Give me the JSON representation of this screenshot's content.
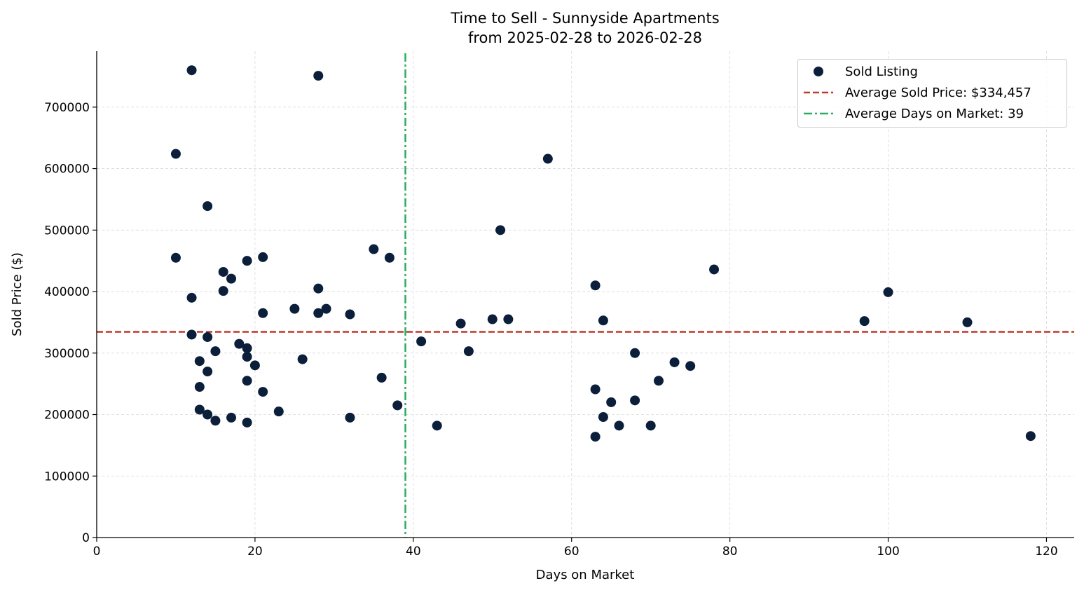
{
  "chart_data": {
    "type": "scatter",
    "title": "Time to Sell - Sunnyside Apartments",
    "subtitle": "from 2025-02-28 to 2026-02-28",
    "xlabel": "Days on Market",
    "ylabel": "Sold Price ($)",
    "xlim": [
      0,
      123.5
    ],
    "ylim": [
      0,
      791000
    ],
    "xticks": [
      0,
      20,
      40,
      60,
      80,
      100,
      120
    ],
    "yticks": [
      0,
      100000,
      200000,
      300000,
      400000,
      500000,
      600000,
      700000
    ],
    "grid": true,
    "legend_placement": "top-right",
    "colors": {
      "points": "#0b1f3a",
      "avg_price": "#c0392b",
      "avg_days": "#27ae60",
      "grid": "#d9d9d9"
    },
    "series": [
      {
        "name": "Sold Listing",
        "points": [
          [
            12,
            760000
          ],
          [
            28,
            751000
          ],
          [
            10,
            624000
          ],
          [
            57,
            616000
          ],
          [
            14,
            539000
          ],
          [
            51,
            500000
          ],
          [
            35,
            469000
          ],
          [
            10,
            455000
          ],
          [
            37,
            455000
          ],
          [
            21,
            456000
          ],
          [
            19,
            450000
          ],
          [
            16,
            432000
          ],
          [
            78,
            436000
          ],
          [
            17,
            421000
          ],
          [
            16,
            401000
          ],
          [
            28,
            405000
          ],
          [
            63,
            410000
          ],
          [
            100,
            399000
          ],
          [
            12,
            390000
          ],
          [
            25,
            372000
          ],
          [
            29,
            372000
          ],
          [
            28,
            365000
          ],
          [
            21,
            365000
          ],
          [
            32,
            363000
          ],
          [
            50,
            355000
          ],
          [
            52,
            355000
          ],
          [
            64,
            353000
          ],
          [
            97,
            352000
          ],
          [
            110,
            350000
          ],
          [
            46,
            348000
          ],
          [
            12,
            330000
          ],
          [
            14,
            326000
          ],
          [
            18,
            315000
          ],
          [
            41,
            319000
          ],
          [
            19,
            308000
          ],
          [
            15,
            303000
          ],
          [
            47,
            303000
          ],
          [
            68,
            300000
          ],
          [
            19,
            294000
          ],
          [
            26,
            290000
          ],
          [
            13,
            287000
          ],
          [
            73,
            285000
          ],
          [
            20,
            280000
          ],
          [
            75,
            279000
          ],
          [
            14,
            270000
          ],
          [
            36,
            260000
          ],
          [
            19,
            255000
          ],
          [
            71,
            255000
          ],
          [
            13,
            245000
          ],
          [
            63,
            241000
          ],
          [
            21,
            237000
          ],
          [
            68,
            223000
          ],
          [
            65,
            220000
          ],
          [
            38,
            215000
          ],
          [
            13,
            208000
          ],
          [
            23,
            205000
          ],
          [
            14,
            200000
          ],
          [
            64,
            196000
          ],
          [
            17,
            195000
          ],
          [
            32,
            195000
          ],
          [
            15,
            190000
          ],
          [
            19,
            187000
          ],
          [
            43,
            182000
          ],
          [
            66,
            182000
          ],
          [
            70,
            182000
          ],
          [
            63,
            164000
          ],
          [
            118,
            165000
          ]
        ]
      }
    ],
    "reference_lines": [
      {
        "name": "Average Sold Price: $334,457",
        "axis": "y",
        "value": 334457,
        "style": "dashed"
      },
      {
        "name": "Average Days on Market: 39",
        "axis": "x",
        "value": 39,
        "style": "dashdot"
      }
    ]
  }
}
